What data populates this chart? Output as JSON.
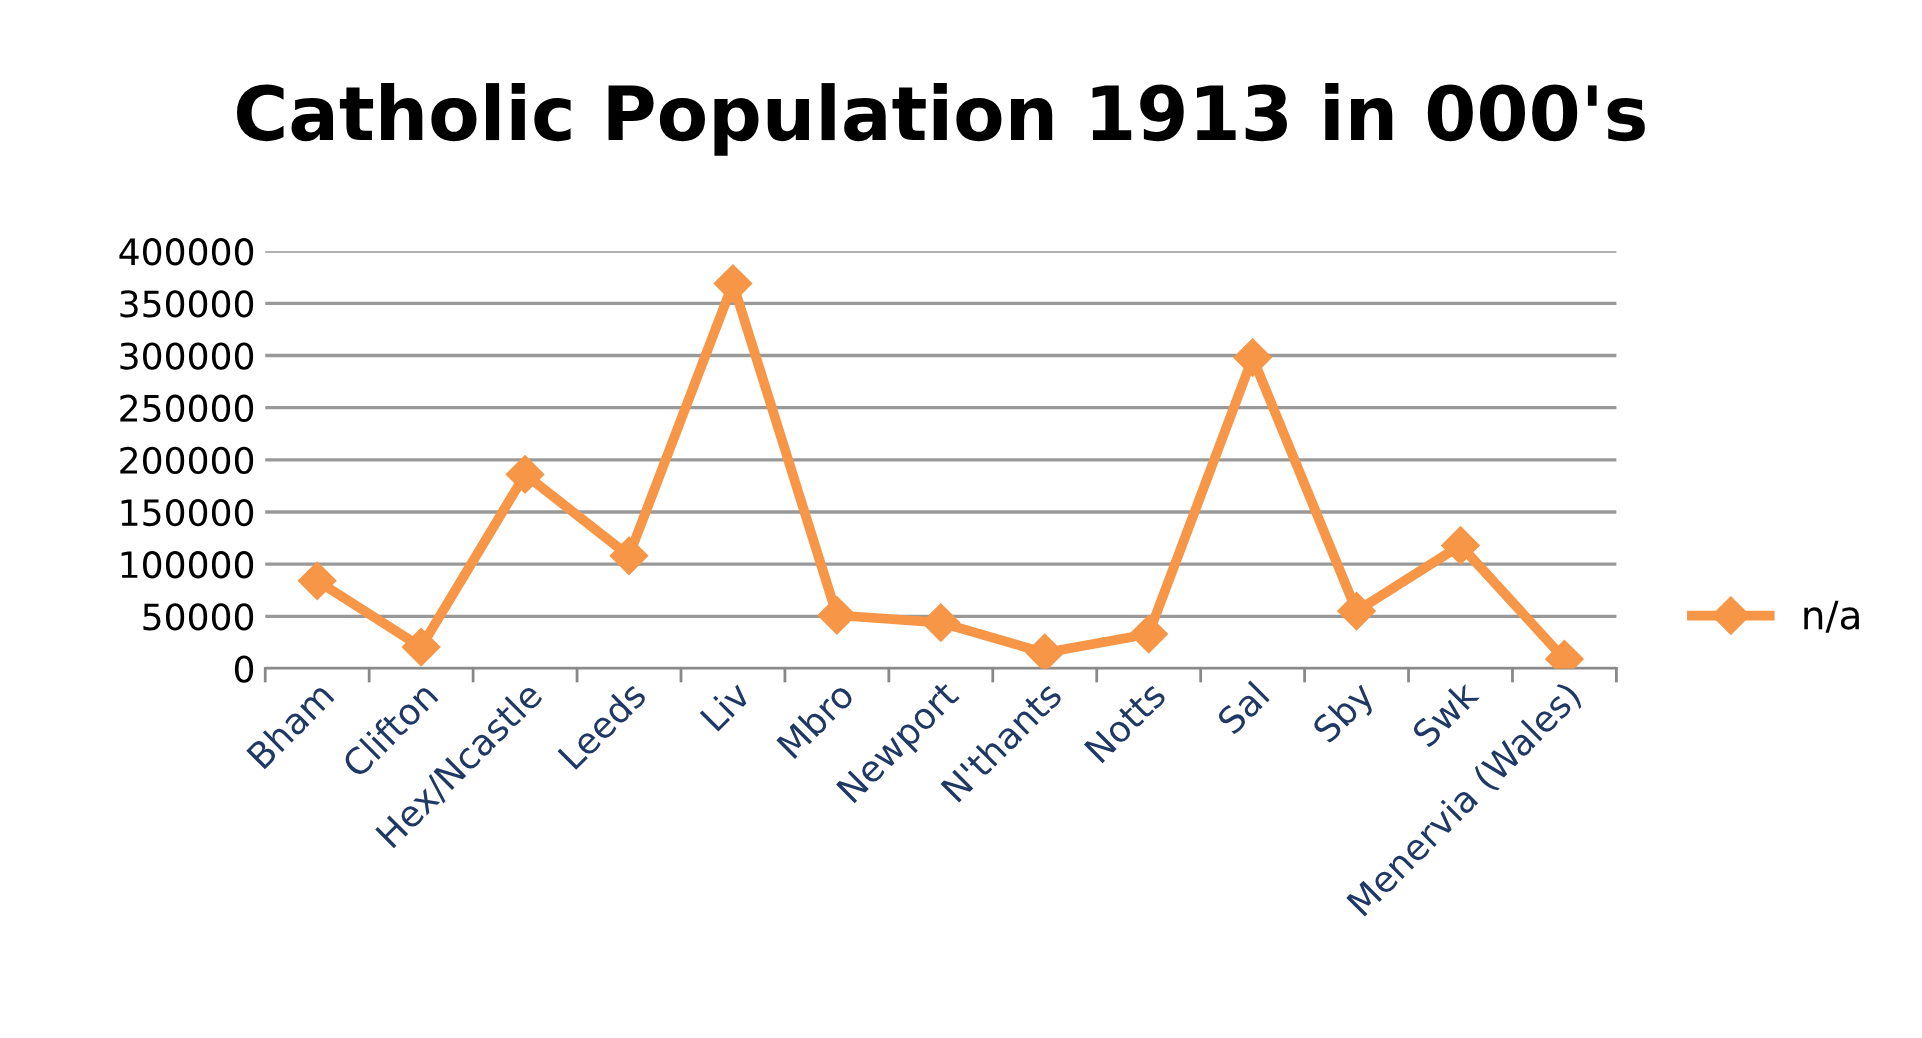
{
  "chart_data": {
    "type": "line",
    "title": "Catholic Population 1913 in 000's",
    "categories": [
      "Bham",
      "Clifton",
      "Hex/Ncastle",
      "Leeds",
      "Liv",
      "Mbro",
      "Newport",
      "N'thants",
      "Notts",
      "Sal",
      "Sby",
      "Swk",
      "Menervia (Wales)"
    ],
    "series": [
      {
        "name": "n/a",
        "color": "#f79646",
        "values": [
          84000,
          20500,
          186000,
          108000,
          369000,
          51000,
          44000,
          15000,
          33000,
          298000,
          55000,
          118000,
          9000
        ]
      }
    ],
    "ylim": [
      0,
      400000
    ],
    "yticks": [
      0,
      50000,
      100000,
      150000,
      200000,
      250000,
      300000,
      350000,
      400000
    ],
    "grid": "y",
    "legend": "right",
    "marker": "diamond",
    "line_style": "solid"
  }
}
